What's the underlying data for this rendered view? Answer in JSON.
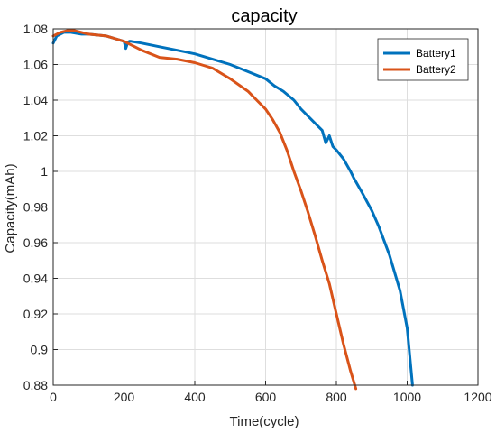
{
  "chart_data": {
    "type": "line",
    "title": "capacity",
    "xlabel": "Time(cycle)",
    "ylabel": "Capacity(mAh)",
    "xlim": [
      0,
      1200
    ],
    "ylim": [
      0.88,
      1.08
    ],
    "xticks": [
      0,
      200,
      400,
      600,
      800,
      1000,
      1200
    ],
    "xtick_labels": [
      "0",
      "200",
      "400",
      "600",
      "800",
      "1000",
      "1200"
    ],
    "yticks": [
      0.88,
      0.9,
      0.92,
      0.94,
      0.96,
      0.98,
      1.0,
      1.02,
      1.04,
      1.06,
      1.08
    ],
    "ytick_labels": [
      "0.88",
      "0.9",
      "0.92",
      "0.94",
      "0.96",
      "0.98",
      "1",
      "1.02",
      "1.04",
      "1.06",
      "1.08"
    ],
    "grid": true,
    "legend_position": "top-right",
    "series": [
      {
        "name": "Battery1",
        "color": "#0072BD",
        "x": [
          0,
          10,
          30,
          50,
          80,
          100,
          150,
          200,
          205,
          210,
          215,
          220,
          250,
          300,
          350,
          400,
          450,
          500,
          550,
          600,
          625,
          650,
          680,
          700,
          720,
          740,
          760,
          770,
          780,
          790,
          800,
          820,
          840,
          850,
          870,
          900,
          920,
          950,
          980,
          1000,
          1015
        ],
        "y": [
          1.072,
          1.076,
          1.078,
          1.078,
          1.077,
          1.077,
          1.076,
          1.073,
          1.069,
          1.072,
          1.073,
          1.073,
          1.072,
          1.07,
          1.068,
          1.066,
          1.063,
          1.06,
          1.056,
          1.052,
          1.048,
          1.045,
          1.04,
          1.035,
          1.031,
          1.027,
          1.023,
          1.016,
          1.02,
          1.014,
          1.012,
          1.007,
          1.0,
          0.996,
          0.989,
          0.978,
          0.969,
          0.953,
          0.933,
          0.912,
          0.88
        ]
      },
      {
        "name": "Battery2",
        "color": "#D95319",
        "x": [
          0,
          10,
          20,
          40,
          60,
          80,
          100,
          150,
          200,
          250,
          300,
          350,
          400,
          450,
          500,
          550,
          580,
          600,
          620,
          640,
          660,
          680,
          700,
          720,
          740,
          760,
          780,
          800,
          820,
          840,
          855
        ],
        "y": [
          1.076,
          1.077,
          1.078,
          1.079,
          1.079,
          1.078,
          1.077,
          1.076,
          1.073,
          1.068,
          1.064,
          1.063,
          1.061,
          1.058,
          1.052,
          1.045,
          1.039,
          1.035,
          1.029,
          1.022,
          1.012,
          1.0,
          0.989,
          0.977,
          0.964,
          0.95,
          0.937,
          0.92,
          0.903,
          0.888,
          0.878
        ]
      }
    ]
  }
}
